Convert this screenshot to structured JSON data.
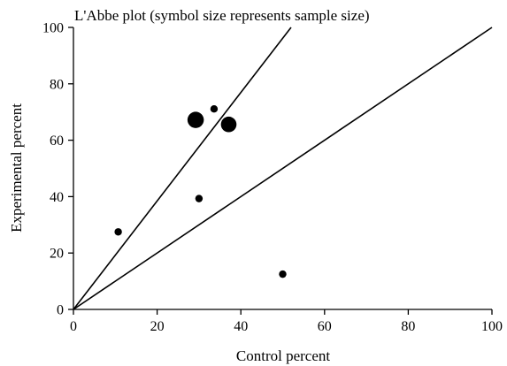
{
  "chart_data": {
    "type": "scatter",
    "title": "L'Abbe plot (symbol size represents sample size)",
    "xlabel": "Control percent",
    "ylabel": "Experimental percent",
    "xlim": [
      0,
      100
    ],
    "ylim": [
      0,
      100
    ],
    "xticks": [
      "0",
      "20",
      "40",
      "60",
      "80",
      "100"
    ],
    "yticks": [
      "0",
      "20",
      "40",
      "60",
      "80",
      "100"
    ],
    "grid": false,
    "legend": "none",
    "reference_lines": [
      {
        "x": [
          0,
          52
        ],
        "y": [
          0,
          100
        ]
      },
      {
        "x": [
          0,
          100
        ],
        "y": [
          0,
          100
        ]
      }
    ],
    "points": [
      {
        "x": 10.7,
        "y": 27.5,
        "size": 1.0
      },
      {
        "x": 29.2,
        "y": 67.2,
        "size": 2.2
      },
      {
        "x": 30.0,
        "y": 39.3,
        "size": 1.0
      },
      {
        "x": 33.6,
        "y": 71.1,
        "size": 1.0
      },
      {
        "x": 37.1,
        "y": 65.6,
        "size": 2.1
      },
      {
        "x": 50.0,
        "y": 12.5,
        "size": 1.0
      }
    ]
  }
}
